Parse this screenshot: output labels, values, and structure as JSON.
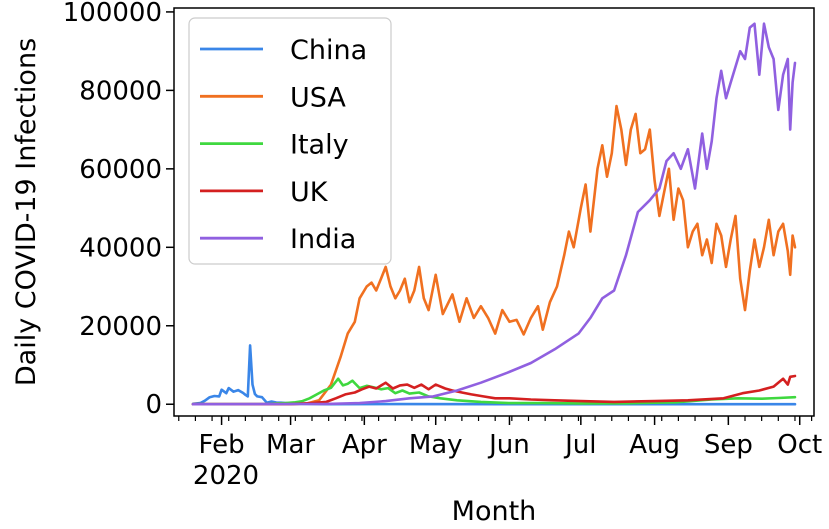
{
  "chart_data": {
    "type": "line",
    "xlabel": "Month",
    "ylabel": "Daily COVID-19 Infections",
    "x_ticks": [
      "Feb",
      "Mar",
      "Apr",
      "May",
      "Jun",
      "Jul",
      "Aug",
      "Sep",
      "Oct"
    ],
    "x_year_label": "2020",
    "y_ticks": [
      "0",
      "20000",
      "40000",
      "60000",
      "80000",
      "100000"
    ],
    "ylim": [
      -3000,
      101000
    ],
    "xlim": [
      "2020-01-12",
      "2020-10-07"
    ],
    "grid": false,
    "legend_position": "top-left",
    "series": [
      {
        "name": "China",
        "color": "#3a86e8",
        "points": [
          [
            "2020-01-20",
            100
          ],
          [
            "2020-01-23",
            300
          ],
          [
            "2020-01-25",
            900
          ],
          [
            "2020-01-27",
            1800
          ],
          [
            "2020-01-29",
            2100
          ],
          [
            "2020-01-31",
            2000
          ],
          [
            "2020-02-01",
            3700
          ],
          [
            "2020-02-03",
            2800
          ],
          [
            "2020-02-04",
            4100
          ],
          [
            "2020-02-06",
            3200
          ],
          [
            "2020-02-08",
            3600
          ],
          [
            "2020-02-10",
            2900
          ],
          [
            "2020-02-11",
            2400
          ],
          [
            "2020-02-12",
            2000
          ],
          [
            "2020-02-13",
            15000
          ],
          [
            "2020-02-14",
            5000
          ],
          [
            "2020-02-15",
            2600
          ],
          [
            "2020-02-16",
            2000
          ],
          [
            "2020-02-18",
            1800
          ],
          [
            "2020-02-20",
            400
          ],
          [
            "2020-02-22",
            700
          ],
          [
            "2020-02-24",
            450
          ],
          [
            "2020-02-26",
            400
          ],
          [
            "2020-03-01",
            200
          ],
          [
            "2020-03-05",
            100
          ],
          [
            "2020-03-15",
            20
          ],
          [
            "2020-04-15",
            30
          ],
          [
            "2020-06-01",
            10
          ],
          [
            "2020-08-01",
            20
          ],
          [
            "2020-09-29",
            20
          ]
        ]
      },
      {
        "name": "USA",
        "color": "#f07020",
        "points": [
          [
            "2020-01-20",
            0
          ],
          [
            "2020-03-01",
            0
          ],
          [
            "2020-03-08",
            200
          ],
          [
            "2020-03-13",
            1000
          ],
          [
            "2020-03-18",
            5000
          ],
          [
            "2020-03-22",
            12000
          ],
          [
            "2020-03-25",
            18000
          ],
          [
            "2020-03-28",
            21000
          ],
          [
            "2020-03-30",
            27000
          ],
          [
            "2020-04-02",
            30000
          ],
          [
            "2020-04-04",
            31000
          ],
          [
            "2020-04-06",
            29000
          ],
          [
            "2020-04-08",
            32000
          ],
          [
            "2020-04-10",
            35000
          ],
          [
            "2020-04-12",
            30000
          ],
          [
            "2020-04-14",
            27000
          ],
          [
            "2020-04-16",
            29000
          ],
          [
            "2020-04-18",
            32000
          ],
          [
            "2020-04-20",
            26000
          ],
          [
            "2020-04-22",
            29000
          ],
          [
            "2020-04-24",
            35000
          ],
          [
            "2020-04-26",
            27000
          ],
          [
            "2020-04-28",
            24000
          ],
          [
            "2020-05-01",
            33000
          ],
          [
            "2020-05-04",
            23000
          ],
          [
            "2020-05-08",
            28000
          ],
          [
            "2020-05-11",
            21000
          ],
          [
            "2020-05-14",
            27000
          ],
          [
            "2020-05-17",
            22000
          ],
          [
            "2020-05-20",
            25000
          ],
          [
            "2020-05-23",
            22000
          ],
          [
            "2020-05-26",
            18000
          ],
          [
            "2020-05-29",
            24000
          ],
          [
            "2020-06-01",
            21000
          ],
          [
            "2020-06-04",
            21500
          ],
          [
            "2020-06-07",
            17800
          ],
          [
            "2020-06-10",
            22000
          ],
          [
            "2020-06-13",
            25000
          ],
          [
            "2020-06-15",
            19000
          ],
          [
            "2020-06-18",
            26000
          ],
          [
            "2020-06-21",
            30000
          ],
          [
            "2020-06-24",
            38000
          ],
          [
            "2020-06-26",
            44000
          ],
          [
            "2020-06-28",
            40000
          ],
          [
            "2020-07-01",
            50000
          ],
          [
            "2020-07-03",
            56000
          ],
          [
            "2020-07-05",
            44000
          ],
          [
            "2020-07-08",
            60000
          ],
          [
            "2020-07-10",
            66000
          ],
          [
            "2020-07-12",
            58000
          ],
          [
            "2020-07-14",
            64000
          ],
          [
            "2020-07-16",
            76000
          ],
          [
            "2020-07-18",
            70000
          ],
          [
            "2020-07-20",
            61000
          ],
          [
            "2020-07-22",
            70000
          ],
          [
            "2020-07-24",
            74000
          ],
          [
            "2020-07-26",
            64000
          ],
          [
            "2020-07-28",
            65000
          ],
          [
            "2020-07-30",
            70000
          ],
          [
            "2020-08-01",
            57000
          ],
          [
            "2020-08-03",
            48000
          ],
          [
            "2020-08-05",
            54000
          ],
          [
            "2020-08-07",
            60000
          ],
          [
            "2020-08-09",
            47000
          ],
          [
            "2020-08-11",
            55000
          ],
          [
            "2020-08-13",
            52000
          ],
          [
            "2020-08-15",
            40000
          ],
          [
            "2020-08-17",
            44000
          ],
          [
            "2020-08-19",
            46000
          ],
          [
            "2020-08-21",
            38000
          ],
          [
            "2020-08-23",
            42000
          ],
          [
            "2020-08-25",
            36000
          ],
          [
            "2020-08-27",
            46000
          ],
          [
            "2020-08-29",
            43000
          ],
          [
            "2020-08-31",
            35000
          ],
          [
            "2020-09-02",
            42000
          ],
          [
            "2020-09-04",
            48000
          ],
          [
            "2020-09-06",
            32000
          ],
          [
            "2020-09-08",
            24000
          ],
          [
            "2020-09-10",
            34000
          ],
          [
            "2020-09-12",
            42000
          ],
          [
            "2020-09-14",
            35000
          ],
          [
            "2020-09-16",
            40000
          ],
          [
            "2020-09-18",
            47000
          ],
          [
            "2020-09-20",
            38000
          ],
          [
            "2020-09-22",
            44000
          ],
          [
            "2020-09-24",
            46000
          ],
          [
            "2020-09-26",
            39000
          ],
          [
            "2020-09-27",
            33000
          ],
          [
            "2020-09-28",
            43000
          ],
          [
            "2020-09-29",
            40000
          ]
        ]
      },
      {
        "name": "Italy",
        "color": "#3fd83f",
        "points": [
          [
            "2020-01-20",
            0
          ],
          [
            "2020-02-20",
            0
          ],
          [
            "2020-02-24",
            200
          ],
          [
            "2020-02-28",
            300
          ],
          [
            "2020-03-03",
            500
          ],
          [
            "2020-03-06",
            800
          ],
          [
            "2020-03-09",
            1500
          ],
          [
            "2020-03-12",
            2500
          ],
          [
            "2020-03-15",
            3500
          ],
          [
            "2020-03-18",
            4200
          ],
          [
            "2020-03-21",
            6500
          ],
          [
            "2020-03-23",
            4800
          ],
          [
            "2020-03-25",
            5200
          ],
          [
            "2020-03-27",
            6000
          ],
          [
            "2020-03-30",
            4100
          ],
          [
            "2020-04-02",
            4700
          ],
          [
            "2020-04-05",
            4300
          ],
          [
            "2020-04-08",
            3800
          ],
          [
            "2020-04-11",
            4100
          ],
          [
            "2020-04-14",
            2800
          ],
          [
            "2020-04-17",
            3500
          ],
          [
            "2020-04-20",
            2700
          ],
          [
            "2020-04-24",
            3000
          ],
          [
            "2020-04-28",
            2000
          ],
          [
            "2020-05-03",
            1500
          ],
          [
            "2020-05-10",
            1000
          ],
          [
            "2020-05-20",
            600
          ],
          [
            "2020-06-01",
            300
          ],
          [
            "2020-06-15",
            300
          ],
          [
            "2020-07-01",
            200
          ],
          [
            "2020-07-20",
            250
          ],
          [
            "2020-08-10",
            500
          ],
          [
            "2020-08-25",
            1200
          ],
          [
            "2020-09-05",
            1500
          ],
          [
            "2020-09-15",
            1400
          ],
          [
            "2020-09-22",
            1600
          ],
          [
            "2020-09-29",
            1800
          ]
        ]
      },
      {
        "name": "UK",
        "color": "#d42020",
        "points": [
          [
            "2020-01-20",
            0
          ],
          [
            "2020-03-01",
            0
          ],
          [
            "2020-03-10",
            300
          ],
          [
            "2020-03-16",
            600
          ],
          [
            "2020-03-20",
            1500
          ],
          [
            "2020-03-24",
            2500
          ],
          [
            "2020-03-28",
            3000
          ],
          [
            "2020-03-31",
            3800
          ],
          [
            "2020-04-03",
            4500
          ],
          [
            "2020-04-06",
            4000
          ],
          [
            "2020-04-10",
            5500
          ],
          [
            "2020-04-13",
            4000
          ],
          [
            "2020-04-16",
            4800
          ],
          [
            "2020-04-19",
            5000
          ],
          [
            "2020-04-22",
            4200
          ],
          [
            "2020-04-25",
            5000
          ],
          [
            "2020-04-28",
            3800
          ],
          [
            "2020-05-01",
            5000
          ],
          [
            "2020-05-05",
            4000
          ],
          [
            "2020-05-08",
            3500
          ],
          [
            "2020-05-12",
            3000
          ],
          [
            "2020-05-16",
            2500
          ],
          [
            "2020-05-21",
            2000
          ],
          [
            "2020-05-26",
            1500
          ],
          [
            "2020-06-01",
            1500
          ],
          [
            "2020-06-10",
            1200
          ],
          [
            "2020-06-20",
            1000
          ],
          [
            "2020-07-01",
            800
          ],
          [
            "2020-07-15",
            600
          ],
          [
            "2020-08-01",
            800
          ],
          [
            "2020-08-15",
            1000
          ],
          [
            "2020-08-30",
            1500
          ],
          [
            "2020-09-07",
            2800
          ],
          [
            "2020-09-14",
            3500
          ],
          [
            "2020-09-20",
            4500
          ],
          [
            "2020-09-24",
            6500
          ],
          [
            "2020-09-26",
            5000
          ],
          [
            "2020-09-27",
            7000
          ],
          [
            "2020-09-29",
            7200
          ]
        ]
      },
      {
        "name": "India",
        "color": "#9060e0",
        "points": [
          [
            "2020-01-20",
            0
          ],
          [
            "2020-03-15",
            50
          ],
          [
            "2020-03-30",
            300
          ],
          [
            "2020-04-10",
            800
          ],
          [
            "2020-04-20",
            1500
          ],
          [
            "2020-04-30",
            2000
          ],
          [
            "2020-05-10",
            3500
          ],
          [
            "2020-05-20",
            5500
          ],
          [
            "2020-05-31",
            8000
          ],
          [
            "2020-06-10",
            10500
          ],
          [
            "2020-06-20",
            14000
          ],
          [
            "2020-06-30",
            18000
          ],
          [
            "2020-07-05",
            22000
          ],
          [
            "2020-07-10",
            27000
          ],
          [
            "2020-07-15",
            29000
          ],
          [
            "2020-07-20",
            38000
          ],
          [
            "2020-07-25",
            49000
          ],
          [
            "2020-07-30",
            52000
          ],
          [
            "2020-08-03",
            55000
          ],
          [
            "2020-08-06",
            62000
          ],
          [
            "2020-08-09",
            64000
          ],
          [
            "2020-08-12",
            60000
          ],
          [
            "2020-08-15",
            65000
          ],
          [
            "2020-08-18",
            55000
          ],
          [
            "2020-08-21",
            69000
          ],
          [
            "2020-08-23",
            60000
          ],
          [
            "2020-08-25",
            67000
          ],
          [
            "2020-08-27",
            78000
          ],
          [
            "2020-08-29",
            85000
          ],
          [
            "2020-08-31",
            78000
          ],
          [
            "2020-09-02",
            82000
          ],
          [
            "2020-09-04",
            86000
          ],
          [
            "2020-09-06",
            90000
          ],
          [
            "2020-09-08",
            88000
          ],
          [
            "2020-09-10",
            96000
          ],
          [
            "2020-09-12",
            97000
          ],
          [
            "2020-09-14",
            84000
          ],
          [
            "2020-09-16",
            97000
          ],
          [
            "2020-09-18",
            91000
          ],
          [
            "2020-09-20",
            88000
          ],
          [
            "2020-09-22",
            75000
          ],
          [
            "2020-09-24",
            84000
          ],
          [
            "2020-09-26",
            88000
          ],
          [
            "2020-09-27",
            70000
          ],
          [
            "2020-09-28",
            82000
          ],
          [
            "2020-09-29",
            87000
          ]
        ]
      }
    ]
  }
}
